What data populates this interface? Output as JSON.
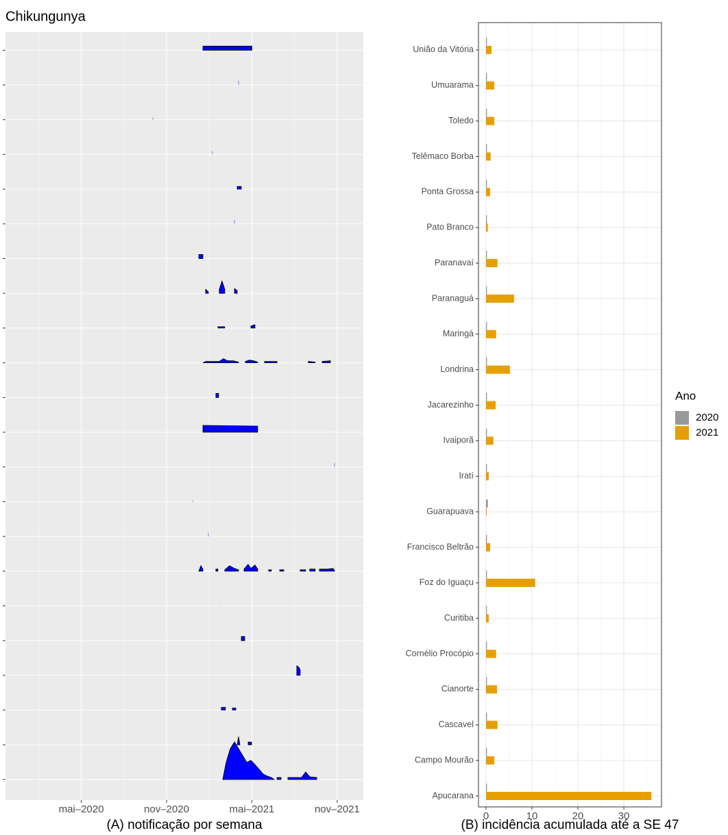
{
  "title": "Chikungunya",
  "chart_data": [
    {
      "type": "ridgeline",
      "xlabel": "(A) notificação por semana",
      "color": "#0000ff",
      "grid": true,
      "xlim": [
        2019.889,
        2021.986
      ],
      "xticks": [
        {
          "value": 2020.333,
          "label": "mai–2020"
        },
        {
          "value": 2020.833,
          "label": "nov–2020"
        },
        {
          "value": 2021.333,
          "label": "mai–2021"
        },
        {
          "value": 2021.833,
          "label": "nov–2021"
        }
      ],
      "series": [
        {
          "x": [
            2021.162,
            2021.182,
            2021.206,
            2021.231,
            2021.255,
            2021.279,
            2021.303,
            2021.327,
            2021.351,
            2021.375,
            2021.399,
            2021.423,
            2021.447,
            2021.464,
            null,
            2021.48,
            2021.504,
            null,
            2021.544,
            2021.624,
            2021.648,
            2021.672,
            2021.713
          ],
          "values": [
            0,
            25,
            45,
            55,
            45,
            35,
            25,
            28,
            22,
            15,
            8,
            5,
            3,
            0,
            null,
            3,
            3,
            null,
            3,
            3,
            11,
            4,
            3
          ]
        },
        {
          "x": [
            2021.247,
            2021.255,
            2021.263,
            null,
            2021.311,
            2021.331
          ],
          "values": [
            0,
            12,
            0,
            null,
            4,
            4
          ]
        },
        {
          "x": [
            2021.154,
            2021.178,
            null,
            2021.219,
            2021.239
          ],
          "values": [
            4,
            4,
            null,
            3,
            3
          ]
        },
        {
          "x": [
            2021.596,
            2021.608,
            2021.616
          ],
          "values": [
            14,
            12,
            8
          ]
        },
        {
          "x": [
            2021.271,
            2021.291
          ],
          "values": [
            6,
            6
          ]
        },
        {
          "x": [
            2021.142
          ],
          "values": [
            1
          ]
        },
        {
          "x": [
            2021.022,
            2021.034,
            2021.046,
            null,
            2021.122,
            2021.134,
            null,
            2021.174,
            2021.202,
            2021.231,
            2021.255,
            null,
            2021.287,
            2021.311,
            2021.327,
            2021.351,
            2021.367,
            null,
            2021.431,
            2021.447,
            null,
            2021.496,
            2021.52,
            null,
            2021.616,
            2021.648,
            null,
            2021.672,
            2021.704,
            null,
            2021.729,
            2021.777,
            2021.809,
            2021.817
          ],
          "values": [
            0,
            8,
            3,
            null,
            3,
            3,
            null,
            2,
            8,
            4,
            2,
            null,
            3,
            10,
            4,
            9,
            3,
            null,
            2,
            2,
            null,
            2,
            2,
            null,
            2,
            2,
            null,
            3,
            3,
            null,
            3,
            3,
            4,
            1
          ]
        },
        {
          "x": [
            2021.078
          ],
          "values": [
            5
          ]
        },
        {
          "x": [
            2020.986
          ],
          "values": [
            2
          ]
        },
        {
          "x": [
            2021.817
          ],
          "values": [
            6
          ]
        },
        {
          "x": [
            2021.046,
            2021.367
          ],
          "values": [
            10,
            9
          ]
        },
        {
          "x": [
            2021.122,
            2021.138
          ],
          "values": [
            6,
            6
          ]
        },
        {
          "x": [
            2021.046,
            2021.062,
            2021.102,
            2021.142,
            2021.166,
            2021.19,
            2021.223,
            2021.255,
            null,
            2021.295,
            2021.319,
            2021.343,
            2021.367,
            null,
            2021.407,
            2021.48,
            null,
            2021.664,
            2021.704,
            null,
            2021.745,
            2021.793
          ],
          "values": [
            0,
            2,
            2,
            2,
            6,
            3,
            3,
            1,
            null,
            2,
            4,
            3,
            1,
            null,
            2,
            2,
            null,
            2,
            1,
            null,
            2,
            3
          ]
        },
        {
          "x": [
            2021.134,
            2021.174,
            null,
            2021.327,
            2021.351
          ],
          "values": [
            2,
            2,
            null,
            3,
            5
          ]
        },
        {
          "x": [
            2021.062,
            2021.078,
            null,
            2021.142,
            2021.158,
            2021.174,
            null,
            2021.231,
            2021.247
          ],
          "values": [
            6,
            2,
            null,
            6,
            18,
            6,
            null,
            7,
            4
          ]
        },
        {
          "x": [
            2021.022,
            2021.046
          ],
          "values": [
            6,
            6
          ]
        },
        {
          "x": [
            2021.231
          ],
          "values": [
            6
          ]
        },
        {
          "x": [
            2021.247,
            2021.271
          ],
          "values": [
            4,
            4
          ]
        },
        {
          "x": [
            2021.102
          ],
          "values": [
            5
          ]
        },
        {
          "x": [
            2020.753
          ],
          "values": [
            3
          ]
        },
        {
          "x": [
            2021.255
          ],
          "values": [
            6
          ]
        },
        {
          "x": [
            2021.046,
            2021.333
          ],
          "values": [
            6,
            6
          ]
        }
      ]
    },
    {
      "type": "bar",
      "orientation": "horizontal",
      "xlabel": "(B) incidência acumulada até a SE 47",
      "legend_title": "Ano",
      "grid": true,
      "xlim": [
        -1.64,
        38.2
      ],
      "xticks": [
        0,
        10,
        20,
        30
      ],
      "categories": [
        "Apucarana",
        "Campo Mourão",
        "Cascavel",
        "Cianorte",
        "Cornélio Procópio",
        "Curitiba",
        "Foz do Iguaçu",
        "Francisco Beltrão",
        "Guarapuava",
        "Iratí",
        "Ivaiporã",
        "Jacarezinho",
        "Londrina",
        "Maringá",
        "Paranaguá",
        "Paranavaí",
        "Pato Branco",
        "Ponta Grossa",
        "Telêmaco Borba",
        "Toledo",
        "Umuarama",
        "União da Vitória"
      ],
      "series": [
        {
          "name": "2020",
          "color": "#999999",
          "values": [
            0.2,
            0.2,
            0.2,
            0.2,
            0.2,
            0.2,
            0.2,
            0.2,
            0.4,
            0.2,
            0.2,
            0.2,
            0.2,
            0.2,
            0.2,
            0.2,
            0.2,
            0.2,
            0.2,
            0.2,
            0.2,
            0.2
          ]
        },
        {
          "name": "2021",
          "color": "#E69F00",
          "values": [
            36.0,
            1.8,
            2.5,
            2.4,
            2.2,
            0.6,
            10.7,
            0.9,
            0.15,
            0.6,
            1.6,
            2.1,
            5.2,
            2.2,
            6.1,
            2.5,
            0.4,
            0.9,
            1.0,
            1.8,
            1.8,
            1.2
          ]
        }
      ]
    }
  ]
}
